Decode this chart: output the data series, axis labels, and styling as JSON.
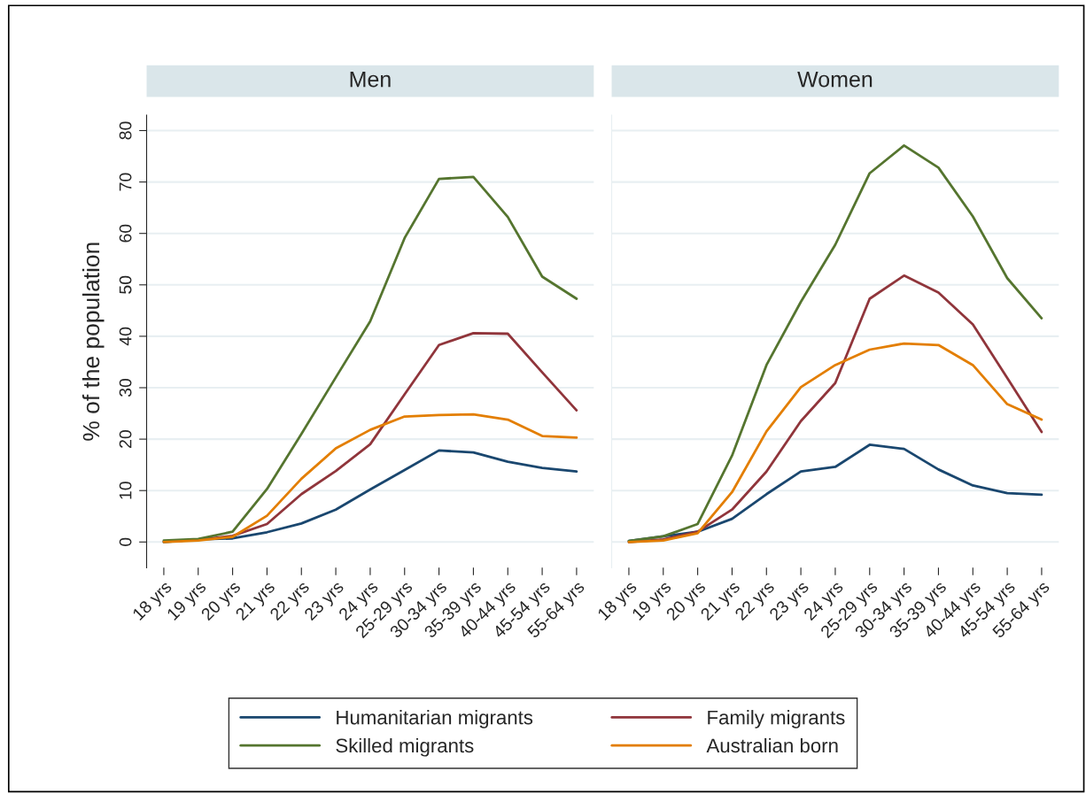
{
  "chart_data": [
    {
      "type": "line",
      "title": "Men",
      "ylabel": "% of the population",
      "categories": [
        "18 yrs",
        "19 yrs",
        "20 yrs",
        "21 yrs",
        "22 yrs",
        "23 yrs",
        "24 yrs",
        "25-29 yrs",
        "30-34 yrs",
        "35-39 yrs",
        "40-44 yrs",
        "45-54 yrs",
        "55-64 yrs"
      ],
      "series": [
        {
          "name": "Humanitarian migrants",
          "color": "#1a476f",
          "values": [
            0,
            0.5,
            0.7,
            1.9,
            3.6,
            6.3,
            10.2,
            14,
            17.8,
            17.4,
            15.6,
            14.4,
            13.7
          ]
        },
        {
          "name": "Family migrants",
          "color": "#90353b",
          "values": [
            0.1,
            0.4,
            1.2,
            3.5,
            9.3,
            13.8,
            19,
            28.7,
            38.3,
            40.6,
            40.5,
            33,
            25.6
          ]
        },
        {
          "name": "Skilled migrants",
          "color": "#55752f",
          "values": [
            0.3,
            0.6,
            2,
            10.3,
            21,
            32,
            42.9,
            59.1,
            70.6,
            71,
            63.2,
            51.6,
            47.3
          ]
        },
        {
          "name": "Australian born",
          "color": "#e37e00",
          "values": [
            0,
            0.3,
            1,
            5.1,
            12.3,
            18.2,
            21.8,
            24.4,
            24.7,
            24.8,
            23.8,
            20.6,
            20.3
          ]
        }
      ],
      "ylim": [
        -5,
        83
      ],
      "yticks": [
        0,
        10,
        20,
        30,
        40,
        50,
        60,
        70,
        80
      ],
      "grid": "y",
      "legend": "bottom",
      "line_style": "solid"
    },
    {
      "type": "line",
      "title": "Women",
      "categories": [
        "18 yrs",
        "19 yrs",
        "20 yrs",
        "21 yrs",
        "22 yrs",
        "23 yrs",
        "24 yrs",
        "25-29 yrs",
        "30-34 yrs",
        "35-39 yrs",
        "40-44 yrs",
        "45-54 yrs",
        "55-64 yrs"
      ],
      "series": [
        {
          "color": "#1a476f",
          "values": [
            0.2,
            1.1,
            2,
            4.5,
            9.3,
            13.7,
            14.6,
            18.9,
            18.1,
            14.1,
            11,
            9.5,
            9.2
          ]
        },
        {
          "color": "#90353b",
          "values": [
            0,
            0.5,
            2,
            6.3,
            13.7,
            23.5,
            30.9,
            47.3,
            51.8,
            48.5,
            42.3,
            31.9,
            21.4
          ]
        },
        {
          "color": "#55752f",
          "values": [
            0.2,
            1.1,
            3.5,
            16.8,
            34.4,
            46.7,
            57.8,
            71.7,
            77.1,
            72.8,
            63.3,
            51.3,
            43.5
          ]
        },
        {
          "color": "#e37e00",
          "values": [
            0,
            0.3,
            1.7,
            9.7,
            21.5,
            30.1,
            34.4,
            37.4,
            38.6,
            38.3,
            34.4,
            26.8,
            23.8
          ]
        }
      ],
      "ylim": [
        -5,
        83
      ],
      "yticks": [
        0,
        10,
        20,
        30,
        40,
        50,
        60,
        70,
        80
      ],
      "grid": "y",
      "tick_labels": "x",
      "line_style": "solid"
    }
  ]
}
